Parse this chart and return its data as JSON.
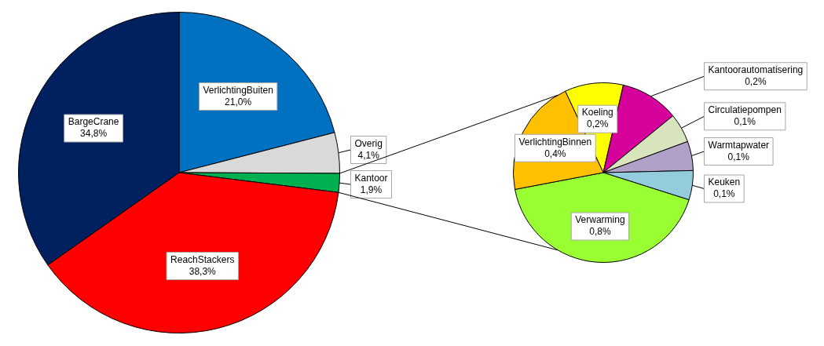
{
  "chart_data": [
    {
      "type": "pie",
      "categories": [
        "VerlichtingBuiten",
        "Overig",
        "Kantoor",
        "ReachStackers",
        "BargeCrane"
      ],
      "values": [
        21.0,
        4.1,
        1.9,
        38.3,
        34.8
      ],
      "colors": [
        "#0070c0",
        "#d9d9d9",
        "#00b050",
        "#ff0000",
        "#002060"
      ],
      "value_labels": [
        "21,0%",
        "4,1%",
        "1,9%",
        "38,3%",
        "34,8%"
      ]
    },
    {
      "type": "pie",
      "categories": [
        "Koeling",
        "Kantoorautomatisering",
        "Circulatiepompen",
        "Warmtapwater",
        "Keuken",
        "Verwarming",
        "VerlichtingBinnen"
      ],
      "values": [
        0.2,
        0.2,
        0.1,
        0.1,
        0.1,
        0.8,
        0.4
      ],
      "colors": [
        "#ffff00",
        "#d6009a",
        "#d8e4bc",
        "#b1a0c7",
        "#93cddd",
        "#99ff33",
        "#ffc000"
      ],
      "value_labels": [
        "0,2%",
        "0,2%",
        "0,1%",
        "0,1%",
        "0,1%",
        "0,8%",
        "0,4%"
      ]
    }
  ]
}
